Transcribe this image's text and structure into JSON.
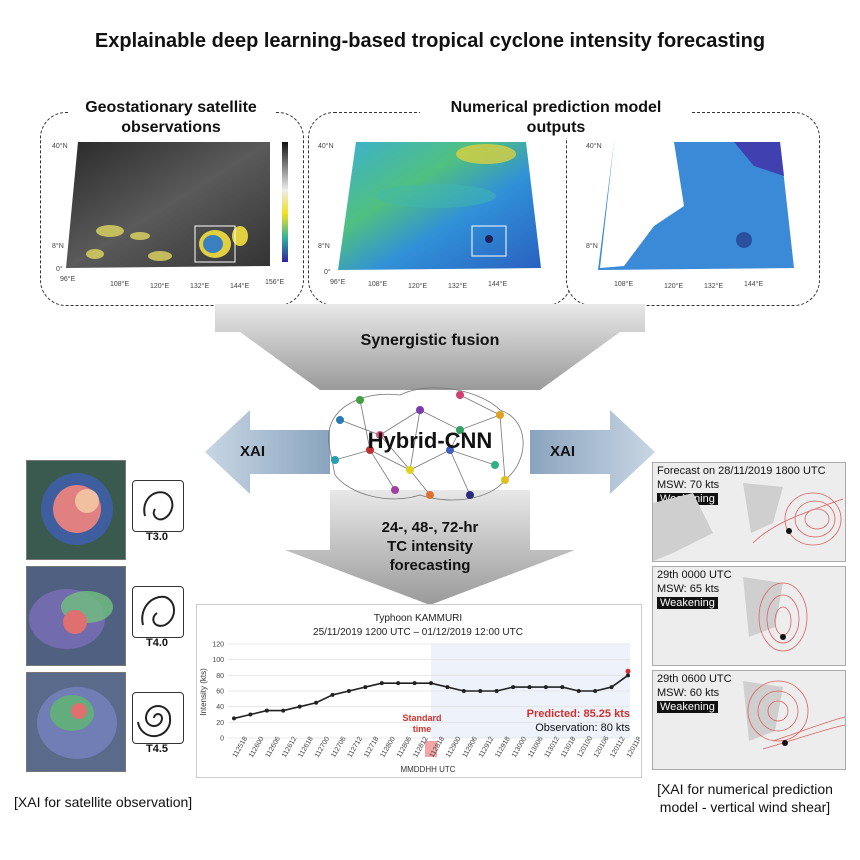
{
  "title": "Explainable deep learning-based tropical cyclone intensity forecasting",
  "top_panels": {
    "satellite_label_l1": "Geostationary satellite",
    "satellite_label_l2": "observations",
    "model_label_l1": "Numerical prediction model",
    "model_label_l2": "outputs"
  },
  "map_axes": {
    "lat_labels": [
      "0°",
      "8°N",
      "16°N",
      "24°N",
      "32°N",
      "40°N"
    ],
    "lon_labels": [
      "96°E",
      "108°E",
      "120°E",
      "132°E",
      "144°E",
      "156°E"
    ]
  },
  "fusion": {
    "label": "Synergistic fusion",
    "model_name": "Hybrid-CNN",
    "xai_left": "XAI",
    "xai_right": "XAI",
    "forecast_l1": "24-, 48-, 72-hr",
    "forecast_l2": "TC intensity",
    "forecast_l3": "forecasting"
  },
  "satellite_xai": {
    "classes": [
      "T3.0",
      "T4.0",
      "T4.5"
    ],
    "caption": "[XAI for satellite observation]"
  },
  "wind_shear_xai": {
    "panels": [
      {
        "time": "Forecast on 28/11/2019 1800 UTC",
        "msw": "MSW: 70 kts",
        "status": "Weakening"
      },
      {
        "time": "29th 0000 UTC",
        "msw": "MSW: 65 kts",
        "status": "Weakening"
      },
      {
        "time": "29th 0600 UTC",
        "msw": "MSW: 60 kts",
        "status": "Weakening"
      }
    ],
    "caption_l1": "[XAI for numerical prediction",
    "caption_l2": "model - vertical wind shear]"
  },
  "chart_data": {
    "type": "line",
    "title": "Typhoon KAMMURI",
    "subtitle": "25/11/2019 1200 UTC – 01/12/2019 12:00 UTC",
    "xlabel": "MMDDHH UTC",
    "ylabel": "Intensity (kts)",
    "ylim": [
      0,
      120
    ],
    "yticks": [
      0,
      20,
      40,
      60,
      80,
      100,
      120
    ],
    "categories": [
      "112518",
      "112600",
      "112606",
      "112612",
      "112618",
      "112700",
      "112706",
      "112712",
      "112718",
      "112800",
      "112806",
      "112812",
      "112818",
      "112900",
      "112906",
      "112912",
      "112918",
      "113000",
      "113006",
      "113012",
      "113018",
      "120100",
      "120106",
      "120112",
      "120118"
    ],
    "series": [
      {
        "name": "Observation",
        "values": [
          25,
          30,
          35,
          35,
          40,
          45,
          55,
          60,
          65,
          70,
          70,
          70,
          70,
          65,
          60,
          60,
          60,
          65,
          65,
          65,
          65,
          60,
          60,
          65,
          80
        ]
      }
    ],
    "predicted_value": 85.25,
    "standard_time_index": 12,
    "standard_label_l1": "Standard",
    "standard_label_l2": "time",
    "predicted_label": "Predicted: 85.25 kts",
    "observation_label": "Observation: 80 kts",
    "colors": {
      "line": "#222222",
      "predicted": "#d0312d",
      "highlight": "#f2a6a6",
      "forecast_region": "#eef3fb"
    }
  }
}
